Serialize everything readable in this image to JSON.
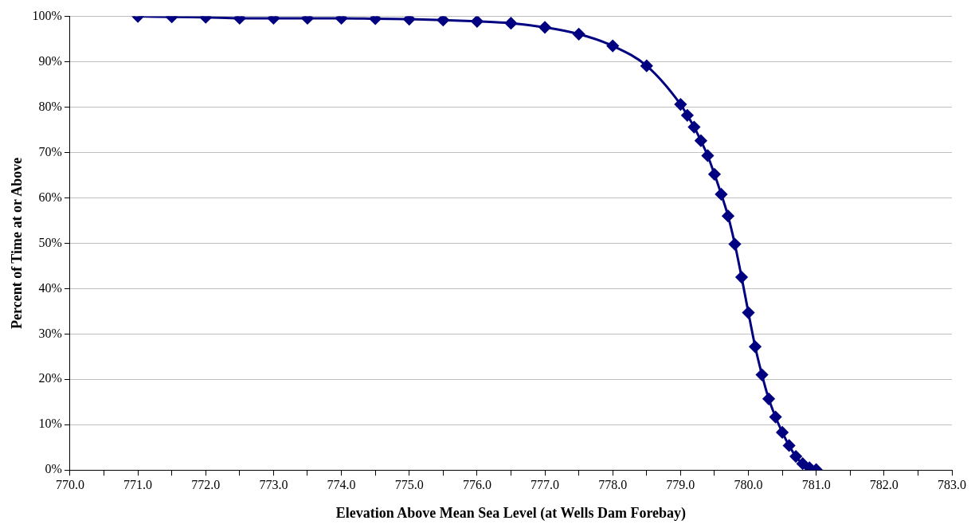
{
  "chart_data": {
    "type": "line",
    "xlabel": "Elevation Above Mean Sea Level (at Wells Dam Forebay)",
    "ylabel": "Percent of Time at or Above",
    "x": [
      771,
      771.5,
      772,
      772.5,
      773,
      773.5,
      774,
      774.5,
      775,
      775.5,
      776,
      776.5,
      777,
      777.5,
      778,
      778.5,
      779,
      779.1,
      779.2,
      779.3,
      779.4,
      779.5,
      779.6,
      779.7,
      779.8,
      779.9,
      780,
      780.1,
      780.2,
      780.3,
      780.4,
      780.5,
      780.6,
      780.7,
      780.8,
      780.9,
      781
    ],
    "series": [
      {
        "color": "#000080",
        "values": [
          100,
          99.9,
          99.8,
          99.6,
          99.6,
          99.6,
          99.6,
          99.5,
          99.4,
          99.2,
          98.9,
          98.5,
          97.6,
          96.1,
          93.5,
          89.1,
          80.6,
          78.2,
          75.6,
          72.6,
          69.3,
          65.2,
          60.8,
          56.0,
          49.8,
          42.5,
          34.7,
          27.2,
          21.0,
          15.7,
          11.7,
          8.3,
          5.4,
          3.0,
          1.4,
          0.5,
          0.1
        ]
      }
    ],
    "xlim": [
      770,
      783
    ],
    "xticks": [
      {
        "value": 770,
        "label": "770.0"
      },
      {
        "value": 770.5,
        "label": null
      },
      {
        "value": 771,
        "label": "771.0"
      },
      {
        "value": 771.5,
        "label": null
      },
      {
        "value": 772,
        "label": "772.0"
      },
      {
        "value": 772.5,
        "label": null
      },
      {
        "value": 773,
        "label": "773.0"
      },
      {
        "value": 773.5,
        "label": null
      },
      {
        "value": 774,
        "label": "774.0"
      },
      {
        "value": 774.5,
        "label": null
      },
      {
        "value": 775,
        "label": "775.0"
      },
      {
        "value": 775.5,
        "label": null
      },
      {
        "value": 776,
        "label": "776.0"
      },
      {
        "value": 776.5,
        "label": null
      },
      {
        "value": 777,
        "label": "777.0"
      },
      {
        "value": 777.5,
        "label": null
      },
      {
        "value": 778,
        "label": "778.0"
      },
      {
        "value": 778.5,
        "label": null
      },
      {
        "value": 779,
        "label": "779.0"
      },
      {
        "value": 779.5,
        "label": null
      },
      {
        "value": 780,
        "label": "780.0"
      },
      {
        "value": 780.5,
        "label": null
      },
      {
        "value": 781,
        "label": "781.0"
      },
      {
        "value": 781.5,
        "label": null
      },
      {
        "value": 782,
        "label": "782.0"
      },
      {
        "value": 782.5,
        "label": null
      },
      {
        "value": 783,
        "label": "783.0"
      }
    ],
    "ylim": [
      0,
      100
    ],
    "yticks": [
      {
        "value": 0,
        "label": "0%"
      },
      {
        "value": 10,
        "label": "10%"
      },
      {
        "value": 20,
        "label": "20%"
      },
      {
        "value": 30,
        "label": "30%"
      },
      {
        "value": 40,
        "label": "40%"
      },
      {
        "value": 50,
        "label": "50%"
      },
      {
        "value": 60,
        "label": "60%"
      },
      {
        "value": 70,
        "label": "70%"
      },
      {
        "value": 80,
        "label": "80%"
      },
      {
        "value": 90,
        "label": "90%"
      },
      {
        "value": 100,
        "label": "100%"
      }
    ],
    "grid": "y",
    "marker": "diamond",
    "line_style": "solid",
    "legend": false
  }
}
